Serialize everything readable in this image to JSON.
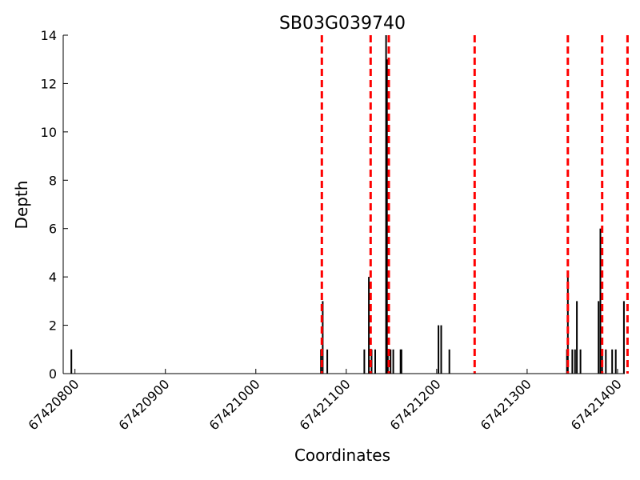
{
  "chart_data": {
    "type": "bar",
    "title": "SB03G039740",
    "xlabel": "Coordinates",
    "ylabel": "Depth",
    "xlim": [
      67420787,
      67421408
    ],
    "ylim": [
      0,
      14
    ],
    "x_ticks": [
      67420800,
      67420900,
      67421000,
      67421100,
      67421200,
      67421300,
      67421400
    ],
    "y_ticks": [
      0,
      2,
      4,
      6,
      8,
      10,
      12,
      14
    ],
    "grid": false,
    "legend": "none",
    "bar_color": "#000000",
    "marker_color": "#ff0000",
    "x": [
      67420796,
      67421072,
      67421074,
      67421079,
      67421120,
      67421125,
      67421128,
      67421132,
      67421144,
      67421145,
      67421146,
      67421149,
      67421152,
      67421160,
      67421161,
      67421202,
      67421205,
      67421214,
      67421344,
      67421345,
      67421350,
      67421353,
      67421355,
      67421359,
      67421379,
      67421381,
      67421383,
      67421387,
      67421394,
      67421398,
      67421407
    ],
    "values": [
      1,
      1,
      3,
      1,
      1,
      4,
      1,
      1,
      14,
      13,
      1,
      1,
      1,
      1,
      1,
      2,
      2,
      1,
      1,
      4,
      1,
      1,
      3,
      1,
      3,
      6,
      1,
      1,
      1,
      1,
      3
    ],
    "markers": [
      67421073,
      67421127,
      67421147,
      67421242,
      67421345,
      67421383,
      67421411
    ]
  }
}
